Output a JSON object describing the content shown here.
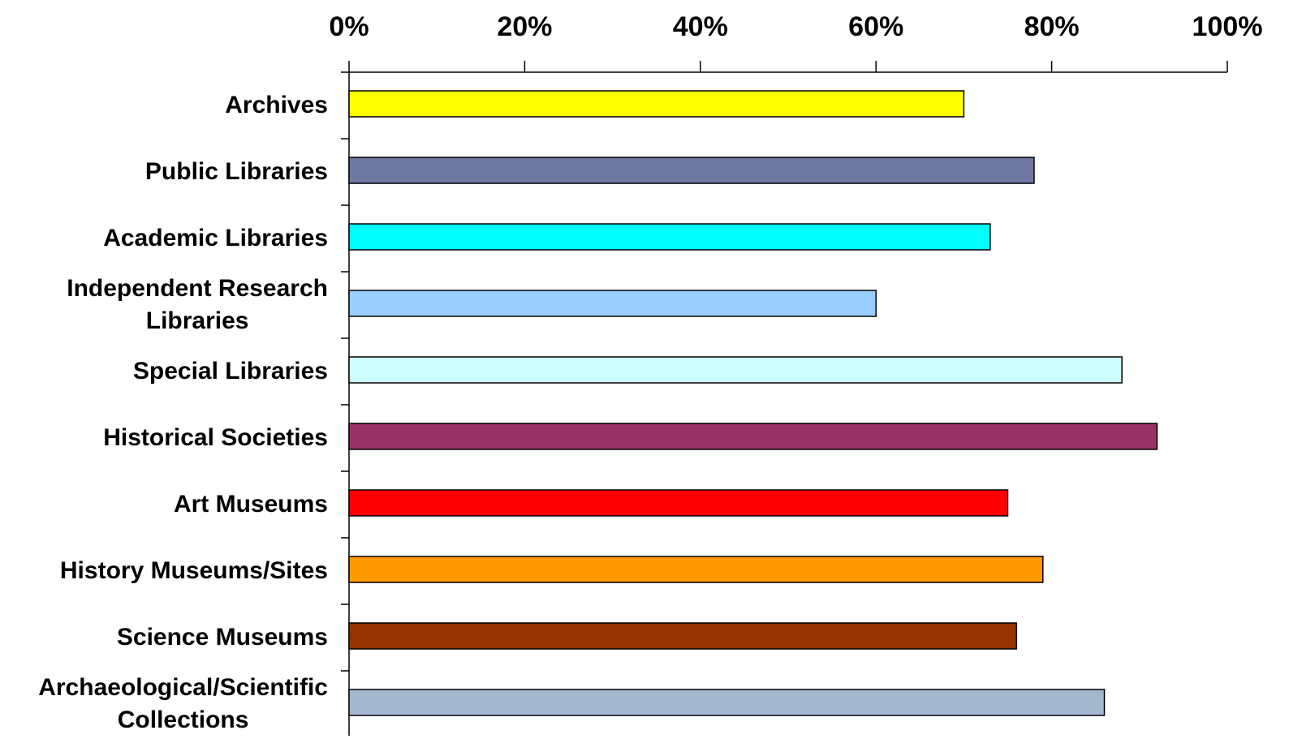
{
  "chart_data": {
    "type": "bar",
    "orientation": "horizontal",
    "title": "",
    "xlabel": "",
    "ylabel": "",
    "xlim": [
      0,
      100
    ],
    "x_unit": "%",
    "grid": false,
    "legend": "none",
    "tick_values": [
      0,
      20,
      40,
      60,
      80,
      100
    ],
    "tick_labels": [
      "0%",
      "20%",
      "40%",
      "60%",
      "80%",
      "100%"
    ],
    "categories": [
      [
        "Archives"
      ],
      [
        "Public Libraries"
      ],
      [
        "Academic Libraries"
      ],
      [
        "Independent Research",
        "Libraries"
      ],
      [
        "Special Libraries"
      ],
      [
        "Historical Societies"
      ],
      [
        "Art Museums"
      ],
      [
        "History Museums/Sites"
      ],
      [
        "Science Museums"
      ],
      [
        "Archaeological/Scientific",
        "Collections"
      ]
    ],
    "values": [
      70,
      78,
      73,
      60,
      88,
      92,
      75,
      79,
      76,
      86
    ],
    "colors": [
      "#FFFF00",
      "#7079A4",
      "#00FFFF",
      "#99CCFF",
      "#CCFFFF",
      "#993366",
      "#FF0000",
      "#FF9900",
      "#993300",
      "#A3B8CF"
    ]
  }
}
